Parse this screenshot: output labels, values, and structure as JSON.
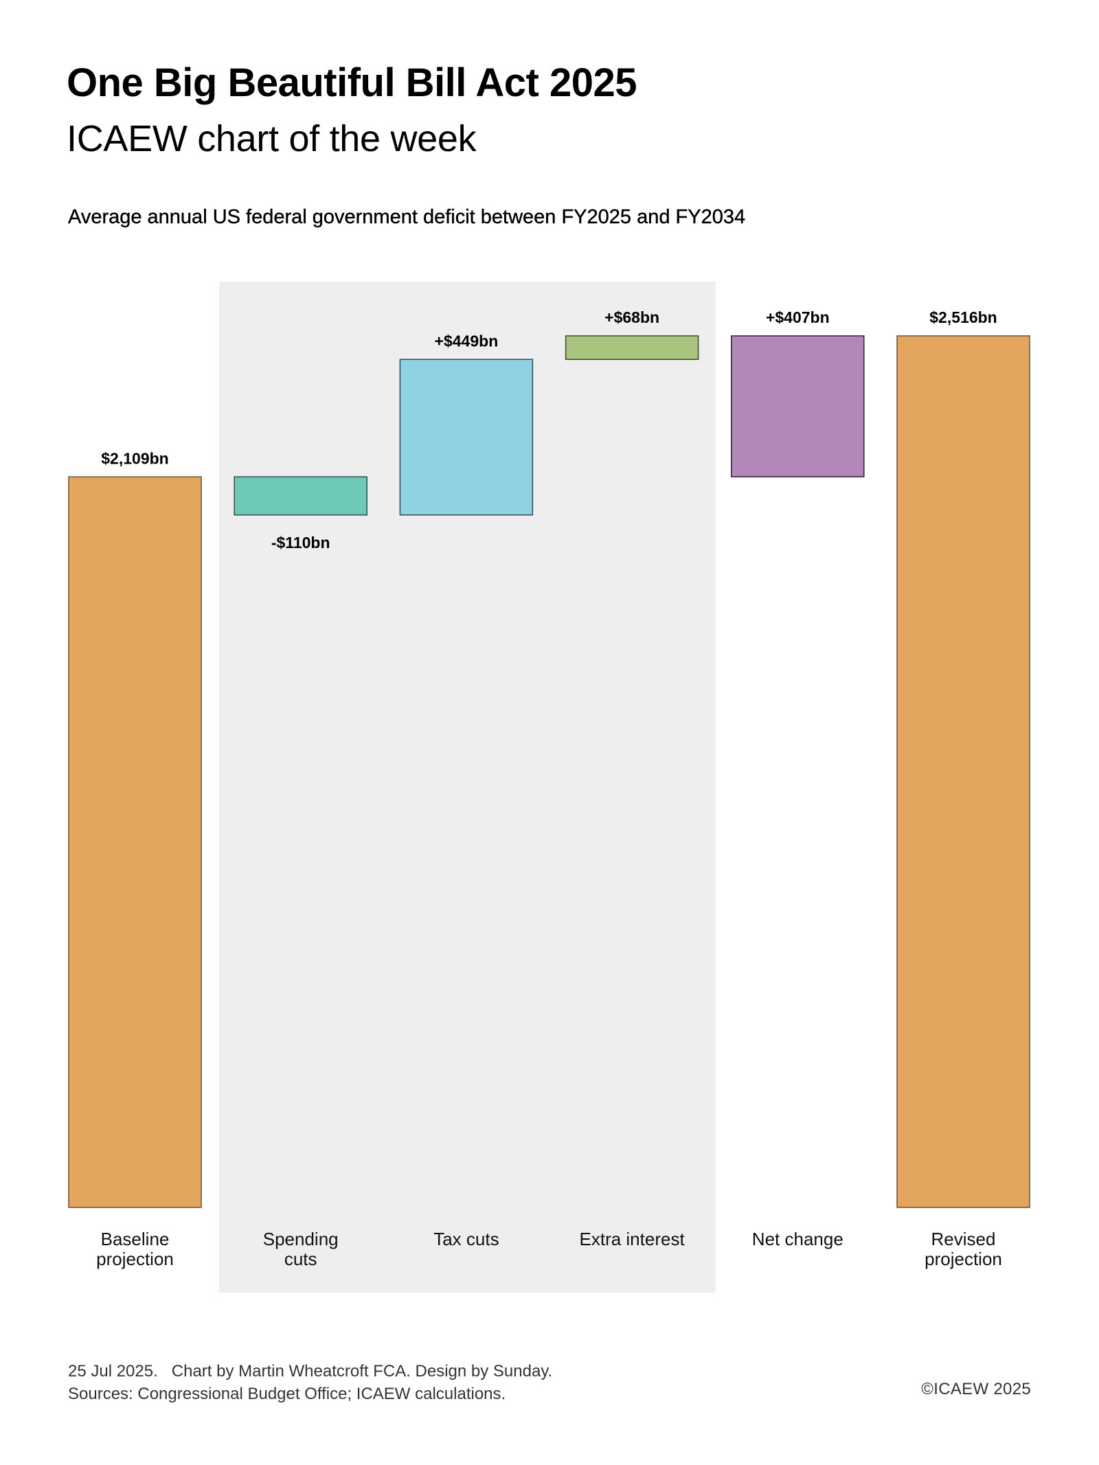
{
  "header": {
    "title": "One Big Beautiful Bill Act 2025",
    "subtitle": "ICAEW chart of the week"
  },
  "chart_data": {
    "type": "waterfall",
    "title": "Average annual US federal government deficit between FY2025 and FY2034",
    "unit": "$bn",
    "xlabel": "",
    "ylabel": "",
    "grid": false,
    "highlight_region": {
      "categories": [
        "Spending cuts",
        "Tax cuts",
        "Extra interest"
      ],
      "color": "#edeeed"
    },
    "bars": [
      {
        "category": [
          "Baseline",
          "projection"
        ],
        "kind": "total",
        "value": 2109,
        "start": 0,
        "end": 2109,
        "label": "$2,109bn",
        "label_position": "above",
        "color": "#e4a55e",
        "stroke": "#6b5233"
      },
      {
        "category": [
          "Spending",
          "cuts"
        ],
        "kind": "delta",
        "value": -110,
        "start": 2109,
        "end": 1999,
        "label": "-$110bn",
        "label_position": "below",
        "color": "#6ec9b6",
        "stroke": "#2f4f48"
      },
      {
        "category": [
          "Tax cuts"
        ],
        "kind": "delta",
        "value": 449,
        "start": 1999,
        "end": 2448,
        "label": "+$449bn",
        "label_position": "above",
        "color": "#8fd2e4",
        "stroke": "#2f4a55"
      },
      {
        "category": [
          "Extra interest"
        ],
        "kind": "delta",
        "value": 68,
        "start": 2448,
        "end": 2516,
        "label": "+$68bn",
        "label_position": "above",
        "color": "#a9c47f",
        "stroke": "#3c4a2c"
      },
      {
        "category": [
          "Net change"
        ],
        "kind": "delta",
        "value": 407,
        "start": 2109,
        "end": 2516,
        "label": "+$407bn",
        "label_position": "above",
        "color": "#b287b9",
        "stroke": "#2e2230"
      },
      {
        "category": [
          "Revised",
          "projection"
        ],
        "kind": "total",
        "value": 2516,
        "start": 0,
        "end": 2516,
        "label": "$2,516bn",
        "label_position": "above",
        "color": "#e4a55e",
        "stroke": "#6b5233"
      }
    ],
    "ylim": [
      0,
      2516
    ]
  },
  "footer": {
    "line1": "25 Jul 2025.   Chart by Martin Wheatcroft FCA. Design by Sunday.",
    "line2": "Sources: Congressional Budget Office; ICAEW calculations.",
    "copyright": "©ICAEW 2025"
  }
}
